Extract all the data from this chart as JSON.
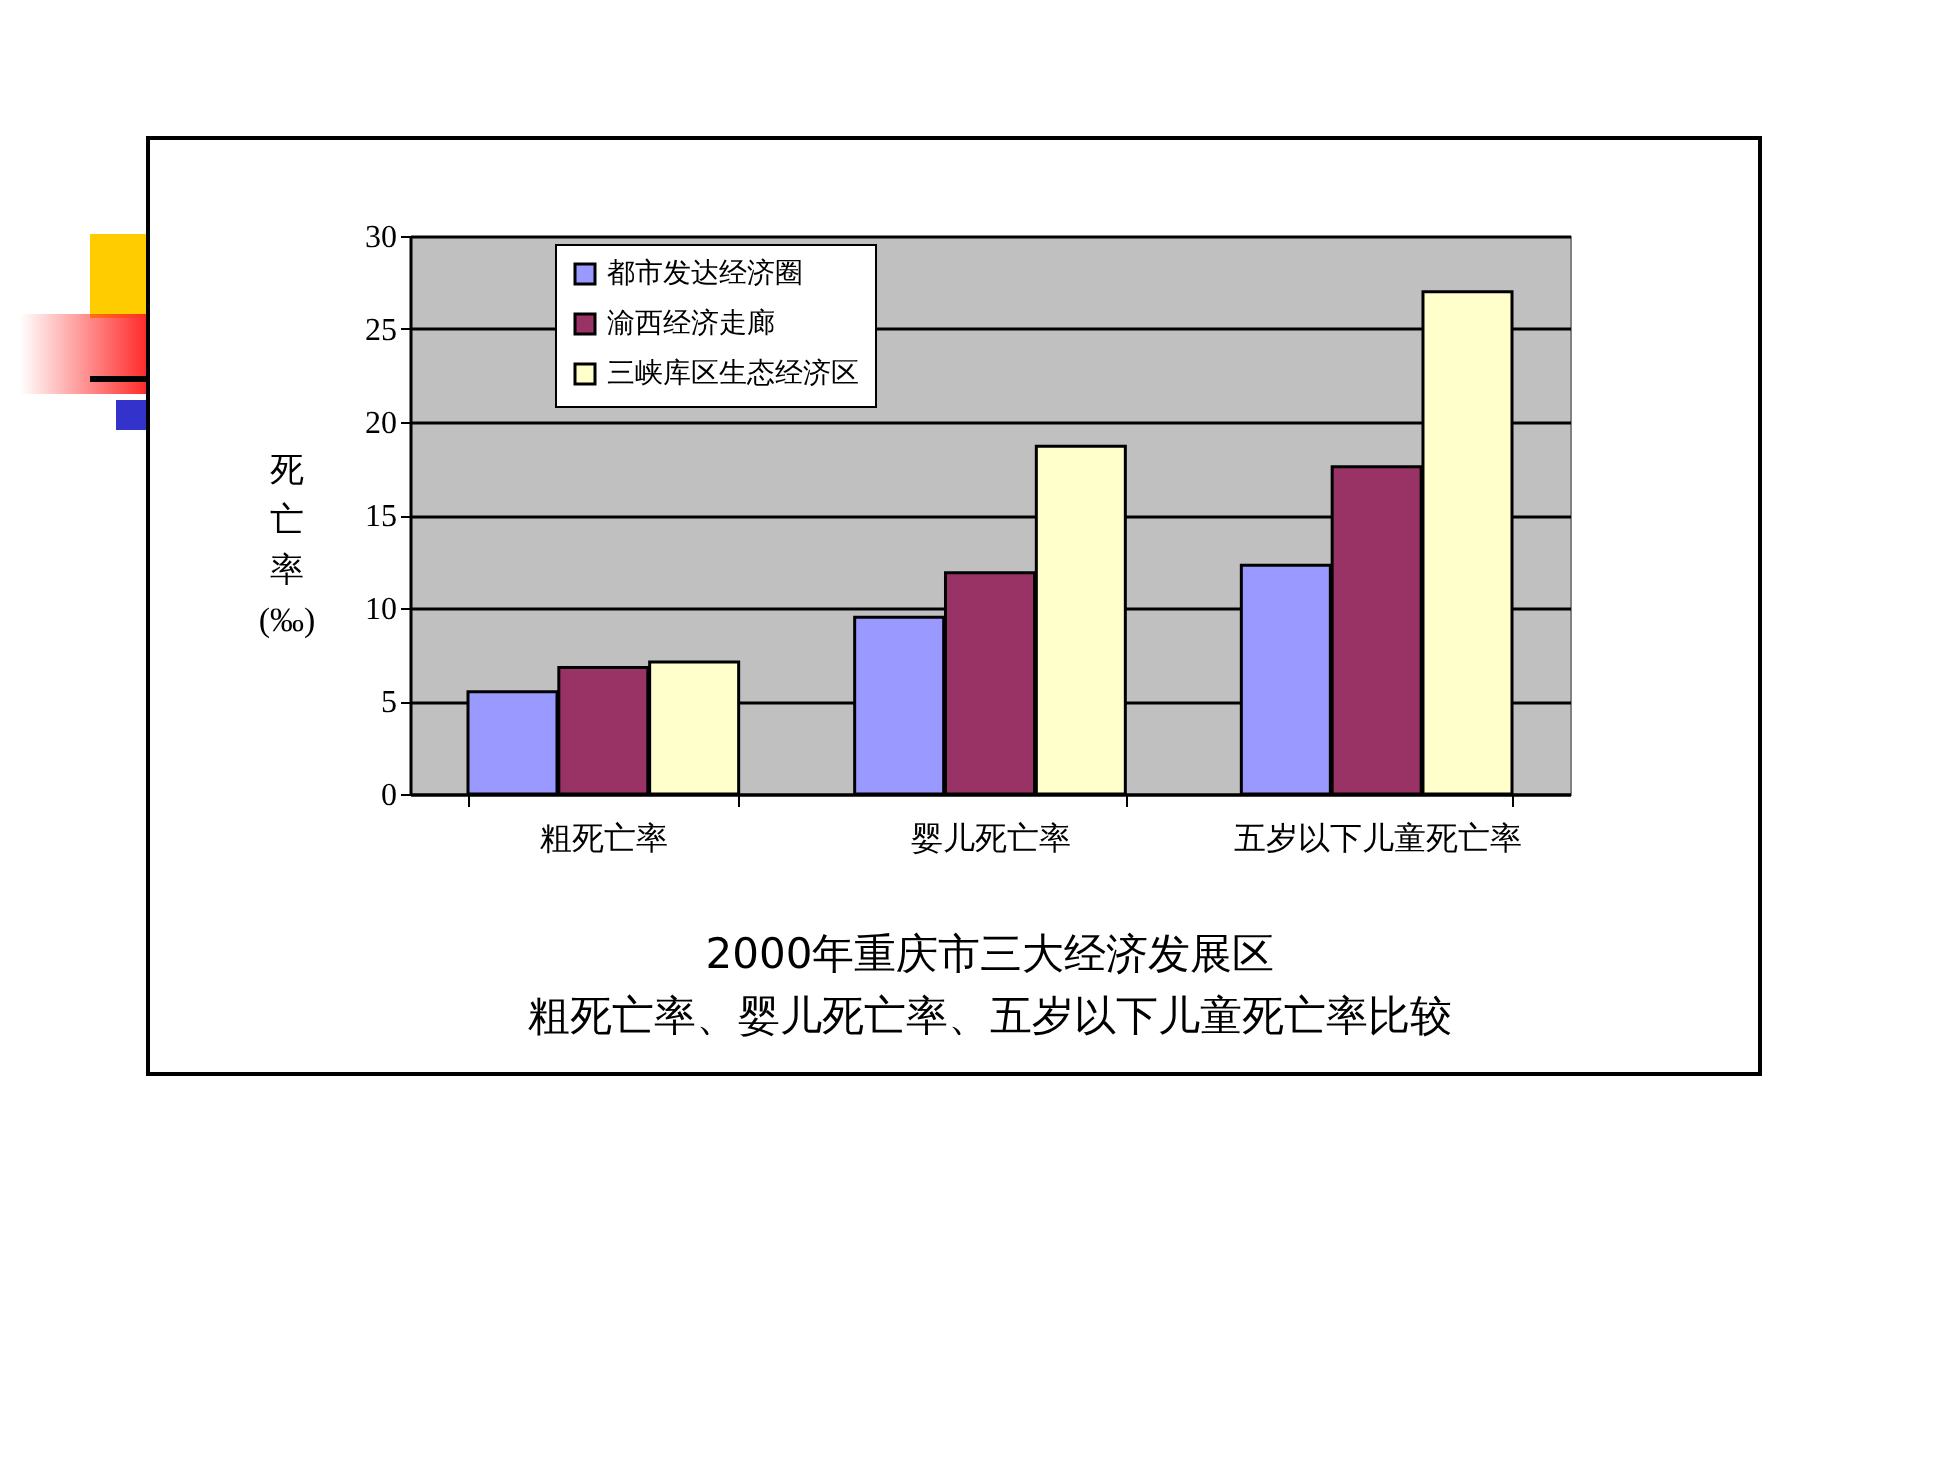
{
  "chart_data": {
    "type": "bar",
    "title": "2000年重庆市三大经济发展区",
    "subtitle": "粗死亡率、婴儿死亡率、五岁以下儿童死亡率比较",
    "ylabel": "死亡率(‰)",
    "categories": [
      "粗死亡率",
      "婴儿死亡率",
      "五岁以下儿童死亡率"
    ],
    "series": [
      {
        "name": "都市发达经济圈",
        "color": "#9999ff",
        "values": [
          5.5,
          9.5,
          12.3
        ]
      },
      {
        "name": "渝西经济走廊",
        "color": "#993366",
        "values": [
          6.8,
          11.9,
          17.6
        ]
      },
      {
        "name": "三峡库区生态经济区",
        "color": "#ffffcc",
        "values": [
          7.1,
          18.7,
          27.0
        ]
      }
    ],
    "ylim": [
      0,
      30
    ],
    "yticks": [
      0,
      5,
      10,
      15,
      20,
      25,
      30
    ],
    "grid": "y",
    "legend": "top left"
  }
}
